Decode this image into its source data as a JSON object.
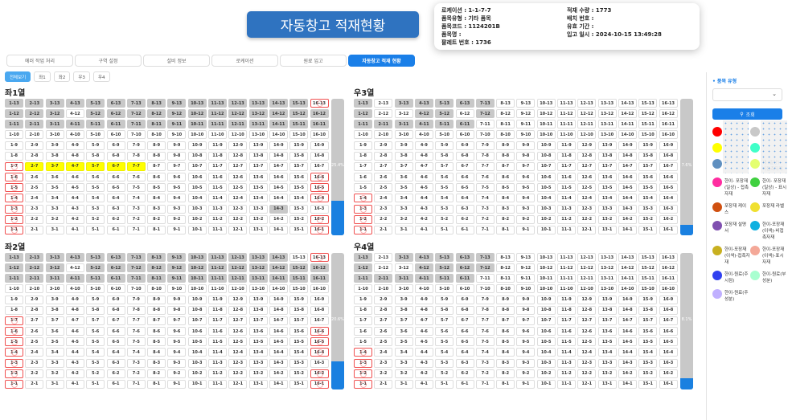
{
  "header": {
    "title": "자동창고 적재현황"
  },
  "tabs": [
    "에러 작업 처리",
    "구역 설정",
    "설비 정보",
    "로케이션",
    "원료 입고",
    "자동창고 적재 현황"
  ],
  "active_tab": 5,
  "subtabs": [
    "전체보기",
    "좌1",
    "좌2",
    "우3",
    "우4"
  ],
  "active_subtab": 0,
  "columns": [
    1,
    2,
    3,
    4,
    5,
    6,
    7,
    8,
    9,
    10,
    11,
    12,
    13,
    14,
    15,
    16
  ],
  "rows": [
    13,
    12,
    11,
    10,
    9,
    8,
    7,
    6,
    5,
    4,
    3,
    2,
    1
  ],
  "colors": {
    "grey": "#c8c8c8",
    "yellow": "#ffff00",
    "red_border": "#f05050",
    "bar_fill": "#1a80e0",
    "accent": "#1a7fe8"
  },
  "grids": [
    {
      "title": "좌1열",
      "percent": 25.4,
      "percent_label": "25.4%",
      "grey": [
        "1-13",
        "2-13",
        "3-13",
        "4-13",
        "5-13",
        "6-13",
        "7-13",
        "8-13",
        "9-13",
        "10-13",
        "11-13",
        "12-13",
        "13-13",
        "14-13",
        "15-13",
        "1-12",
        "2-12",
        "3-12",
        "5-12",
        "6-12",
        "7-12",
        "8-12",
        "9-12",
        "10-12",
        "11-12",
        "12-12",
        "13-12",
        "14-12",
        "15-12",
        "16-12",
        "1-11",
        "2-11",
        "3-11",
        "4-11",
        "5-11",
        "6-11",
        "7-11",
        "8-11",
        "9-11",
        "10-11",
        "11-11",
        "12-11",
        "13-11",
        "14-11",
        "15-11",
        "16-11",
        "14-3"
      ],
      "red": [
        "16-13",
        "1-7",
        "1-6",
        "1-5",
        "1-4",
        "1-3",
        "1-2",
        "1-1",
        "16-6",
        "16-5",
        "16-4",
        "16-2",
        "16-1"
      ],
      "yellow": [
        "2-7",
        "3-7",
        "4-7",
        "5-7",
        "6-7",
        "7-7"
      ]
    },
    {
      "title": "우3열",
      "percent": 7.6,
      "percent_label": "7.6%",
      "grey": [
        "1-13",
        "3-13",
        "4-13",
        "5-13",
        "6-13",
        "7-13",
        "1-12",
        "4-12",
        "5-12",
        "7-12",
        "1-11",
        "2-11",
        "3-11",
        "4-11",
        "5-11",
        "6-11"
      ],
      "red": [
        "1-4",
        "1-3",
        "1-2",
        "1-1"
      ],
      "yellow": []
    },
    {
      "title": "좌2열",
      "percent": 20.6,
      "percent_label": "20.6%",
      "grey": [
        "1-13",
        "2-13",
        "3-13",
        "4-13",
        "5-13",
        "6-13",
        "7-13",
        "8-13",
        "9-13",
        "10-13",
        "11-13",
        "12-13",
        "13-13",
        "14-13",
        "1-12",
        "2-12",
        "3-12",
        "5-12",
        "6-12",
        "7-12",
        "8-12",
        "9-12",
        "10-12",
        "11-12",
        "12-12",
        "13-12",
        "14-12",
        "15-12",
        "16-12",
        "1-11",
        "2-11",
        "3-11",
        "4-11",
        "5-11",
        "6-11",
        "7-11",
        "8-11",
        "9-11",
        "10-11",
        "11-11",
        "12-11",
        "13-11",
        "14-11",
        "15-11",
        "16-11"
      ],
      "red": [
        "16-13",
        "1-7",
        "1-6",
        "1-5",
        "1-4",
        "1-3",
        "1-2",
        "1-1",
        "16-6",
        "16-5",
        "16-4",
        "16-2",
        "16-1"
      ],
      "yellow": []
    },
    {
      "title": "우4열",
      "percent": 8.1,
      "percent_label": "8.1%",
      "grey": [
        "1-13",
        "3-13",
        "4-13",
        "5-13",
        "6-13",
        "7-13",
        "1-12",
        "4-12",
        "5-12",
        "6-12",
        "7-12",
        "1-11",
        "2-11",
        "3-11",
        "4-11",
        "5-11",
        "6-11"
      ],
      "red": [
        "1-4",
        "1-3",
        "1-2",
        "1-1"
      ],
      "yellow": []
    }
  ],
  "tooltip": {
    "lines": [
      "로케이션 : 1-1-7-7",
      "품목유형 : 기타 품목",
      "품목코드 : 1124201B",
      "품목명 :",
      "팔레트 번호 : 1736",
      "적재 수량 : 1773",
      "배치 번호 :",
      "유효 기간 :",
      "입고 일시 : 2024-10-15 13:49:28"
    ]
  },
  "sidebar": {
    "heading": "• 품목 유형",
    "select_value": "",
    "search_label": "조회",
    "legend": [
      {
        "color": "#ff0000",
        "label": ""
      },
      {
        "color": "#c8c8c8",
        "label": ""
      },
      {
        "color": "#ffff00",
        "label": ""
      },
      {
        "color": "#40ffc8",
        "label": ""
      },
      {
        "color": "#6090c0",
        "label": "품"
      },
      {
        "color": "#e4ff70",
        "label": "재 (일상) - 비접촉자재"
      },
      {
        "color": "#ff2da0",
        "label": "한이- 포장재 (일상) - 접촉자재"
      },
      {
        "color": "#40d040",
        "label": "한이- 포장재 (일상) - 표시자재"
      },
      {
        "color": "#d05010",
        "label": "포장재 케이스"
      },
      {
        "color": "#f0e030",
        "label": "포장재 라벨"
      },
      {
        "color": "#8050b0",
        "label": "포장재 설명서"
      },
      {
        "color": "#10b0e0",
        "label": "한이-포장재(이색)-비접촉자재"
      },
      {
        "color": "#c8b020",
        "label": "한이-포장재(이색)-접촉자재"
      },
      {
        "color": "#f4a898",
        "label": "한이-포장재(이색)-표시자재"
      },
      {
        "color": "#3040f0",
        "label": "한이-원료(주시점)"
      },
      {
        "color": "#a8ffd0",
        "label": "한이-원료(부성분)"
      },
      {
        "color": "#c0b0ff",
        "label": "한이-원료(주성분)"
      }
    ]
  }
}
